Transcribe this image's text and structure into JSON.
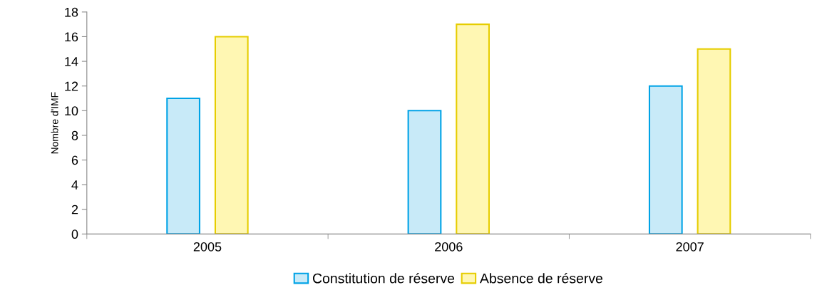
{
  "chart_data": {
    "type": "bar",
    "ylabel": "Nombre d'IMF",
    "categories": [
      "2005",
      "2006",
      "2007"
    ],
    "series": [
      {
        "name": "Constitution de réserve",
        "color": "#c8eaf8",
        "values": [
          11,
          10,
          12
        ]
      },
      {
        "name": "Absence de réserve",
        "color": "#fff7b3",
        "values": [
          16,
          17,
          15
        ]
      }
    ],
    "ylim": [
      0,
      18
    ],
    "yticks": [
      0,
      2,
      4,
      6,
      8,
      10,
      12,
      14,
      16,
      18
    ],
    "grid": false,
    "legend": "bottom"
  }
}
